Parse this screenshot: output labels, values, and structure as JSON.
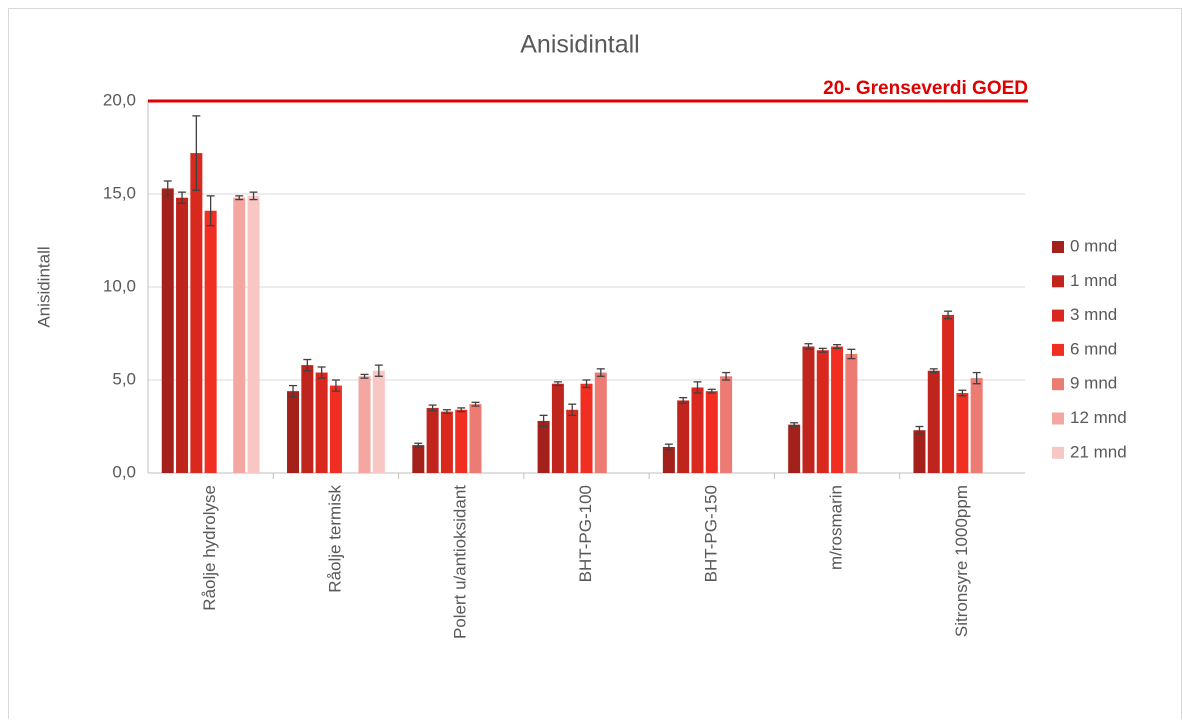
{
  "chart_data": {
    "type": "bar",
    "title": "Anisidintall",
    "y_label": "Anisidintall",
    "categories": [
      "Råolje hydrolyse",
      "Råolje termisk",
      "Polert u/antioksidant",
      "BHT-PG-100",
      "BHT-PG-150",
      "m/rosmarin",
      "Sitronsyre 1000ppm"
    ],
    "series": [
      {
        "name": "0 mnd",
        "color": "#a4211b",
        "values": [
          15.3,
          4.4,
          1.5,
          2.8,
          1.4,
          2.6,
          2.3
        ],
        "errors": [
          0.4,
          0.3,
          0.1,
          0.3,
          0.15,
          0.1,
          0.2
        ]
      },
      {
        "name": "1 mnd",
        "color": "#c0251d",
        "values": [
          14.8,
          5.8,
          3.5,
          4.8,
          3.9,
          6.8,
          5.5
        ],
        "errors": [
          0.3,
          0.3,
          0.15,
          0.1,
          0.15,
          0.15,
          0.1
        ]
      },
      {
        "name": "3 mnd",
        "color": "#d9291f",
        "values": [
          17.2,
          5.4,
          3.3,
          3.4,
          4.6,
          6.6,
          8.5
        ],
        "errors": [
          2.0,
          0.3,
          0.1,
          0.3,
          0.3,
          0.1,
          0.2
        ]
      },
      {
        "name": "6 mnd",
        "color": "#f02e22",
        "values": [
          14.1,
          4.7,
          3.4,
          4.8,
          4.4,
          6.8,
          4.3
        ],
        "errors": [
          0.8,
          0.3,
          0.1,
          0.2,
          0.1,
          0.1,
          0.15
        ]
      },
      {
        "name": "9 mnd",
        "color": "#ec7b73",
        "values": [
          null,
          null,
          3.7,
          5.4,
          5.2,
          6.4,
          5.1
        ],
        "errors": [
          null,
          null,
          0.1,
          0.2,
          0.2,
          0.25,
          0.3
        ]
      },
      {
        "name": "12 mnd",
        "color": "#f4a6a0",
        "values": [
          14.8,
          5.2,
          null,
          null,
          null,
          null,
          null
        ],
        "errors": [
          0.1,
          0.1,
          null,
          null,
          null,
          null,
          null
        ]
      },
      {
        "name": "21 mnd",
        "color": "#f8c6c3",
        "values": [
          14.9,
          5.5,
          null,
          null,
          null,
          null,
          null
        ],
        "errors": [
          0.2,
          0.3,
          null,
          null,
          null,
          null,
          null
        ]
      }
    ],
    "ylim": [
      0,
      20
    ],
    "yticks": [
      {
        "value": 0,
        "label": "0,0"
      },
      {
        "value": 5,
        "label": "5,0"
      },
      {
        "value": 10,
        "label": "10,0"
      },
      {
        "value": 15,
        "label": "15,0"
      },
      {
        "value": 20,
        "label": "20,0"
      }
    ],
    "grid": true,
    "reference_line": {
      "value": 20,
      "label": "20- Grenseverdi GOED",
      "color": "#e00000"
    },
    "legend": "right"
  }
}
